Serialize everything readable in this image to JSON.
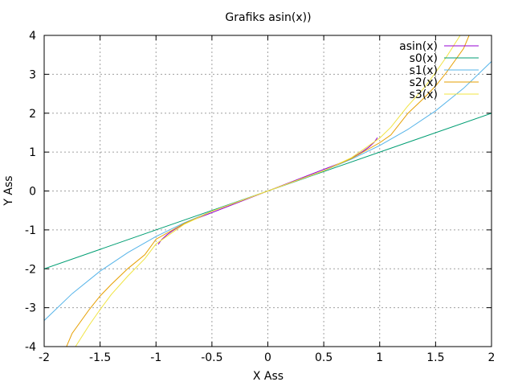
{
  "chart_data": {
    "type": "line",
    "title": "Grafiks asin(x))",
    "xlabel": "X Ass",
    "ylabel": "Y Ass",
    "xlim": [
      -2,
      2
    ],
    "ylim": [
      -4,
      4
    ],
    "grid": true,
    "legend_position": "top-right",
    "x_ticks": [
      -2,
      -1.5,
      -1,
      -0.5,
      0,
      0.5,
      1,
      1.5,
      2
    ],
    "x_tick_labels": [
      "-2",
      "-1.5",
      "-1",
      "-0.5",
      "0",
      "0.5",
      "1",
      "1.5",
      "2"
    ],
    "y_ticks": [
      -4,
      -3,
      -2,
      -1,
      0,
      1,
      2,
      3,
      4
    ],
    "y_tick_labels": [
      "-4",
      "-3",
      "-2",
      "-1",
      "0",
      "1",
      "2",
      "3",
      "4"
    ],
    "series": [
      {
        "name": "asin(x)",
        "color": "#9400d3",
        "points": [
          [
            -0.98,
            -1.37
          ],
          [
            -0.95,
            -1.25
          ],
          [
            -0.9,
            -1.12
          ],
          [
            -0.85,
            -1.02
          ],
          [
            -0.8,
            -0.93
          ],
          [
            -0.75,
            -0.85
          ],
          [
            -0.72,
            -0.8
          ],
          [
            0.72,
            0.8
          ],
          [
            0.75,
            0.85
          ],
          [
            0.8,
            0.93
          ],
          [
            0.85,
            1.02
          ],
          [
            0.9,
            1.12
          ],
          [
            0.95,
            1.25
          ],
          [
            0.98,
            1.37
          ]
        ]
      },
      {
        "name": "s0(x)",
        "color": "#009e73",
        "points": [
          [
            -2,
            -2
          ],
          [
            -0.42,
            -0.42
          ],
          [
            0.42,
            0.42
          ],
          [
            2,
            2
          ]
        ]
      },
      {
        "name": "s1(x)",
        "color": "#56b4e9",
        "points": [
          [
            -2,
            -3.33
          ],
          [
            -1.75,
            -2.64
          ],
          [
            -1.5,
            -2.06
          ],
          [
            -1.25,
            -1.58
          ],
          [
            -1,
            -1.17
          ],
          [
            -0.75,
            -0.82
          ],
          [
            -0.5,
            -0.52
          ],
          [
            -0.42,
            -0.43
          ],
          [
            0.42,
            0.43
          ],
          [
            0.5,
            0.52
          ],
          [
            0.75,
            0.82
          ],
          [
            1,
            1.17
          ],
          [
            1.25,
            1.58
          ],
          [
            1.5,
            2.06
          ],
          [
            1.75,
            2.64
          ],
          [
            2,
            3.33
          ]
        ]
      },
      {
        "name": "s2(x)",
        "color": "#e69f00",
        "points": [
          [
            -1.8,
            -4
          ],
          [
            -1.75,
            -3.66
          ],
          [
            -1.6,
            -3.06
          ],
          [
            -1.5,
            -2.7
          ],
          [
            -1.4,
            -2.4
          ],
          [
            -1.25,
            -1.99
          ],
          [
            -1.1,
            -1.64
          ],
          [
            -1,
            -1.24
          ],
          [
            -0.75,
            -0.84
          ],
          [
            -0.5,
            -0.52
          ],
          [
            0.5,
            0.52
          ],
          [
            0.75,
            0.84
          ],
          [
            1,
            1.24
          ],
          [
            1.1,
            1.44
          ],
          [
            1.25,
            1.99
          ],
          [
            1.4,
            2.4
          ],
          [
            1.5,
            2.7
          ],
          [
            1.6,
            3.06
          ],
          [
            1.75,
            3.66
          ],
          [
            1.8,
            4
          ]
        ]
      },
      {
        "name": "s3(x)",
        "color": "#f0e442",
        "points": [
          [
            -1.72,
            -4
          ],
          [
            -1.6,
            -3.46
          ],
          [
            -1.5,
            -3.05
          ],
          [
            -1.4,
            -2.66
          ],
          [
            -1.25,
            -2.18
          ],
          [
            -1.1,
            -1.74
          ],
          [
            -1,
            -1.36
          ],
          [
            -0.75,
            -0.86
          ],
          [
            -0.5,
            -0.52
          ],
          [
            0.5,
            0.52
          ],
          [
            0.75,
            0.86
          ],
          [
            1,
            1.36
          ],
          [
            1.1,
            1.64
          ],
          [
            1.25,
            2.18
          ],
          [
            1.4,
            2.66
          ],
          [
            1.5,
            3.05
          ],
          [
            1.6,
            3.46
          ],
          [
            1.72,
            4
          ]
        ]
      }
    ]
  }
}
